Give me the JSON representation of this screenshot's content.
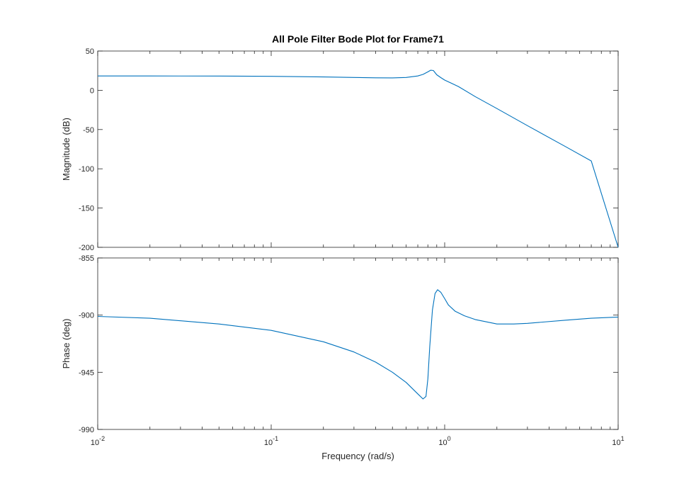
{
  "chart_data": [
    {
      "type": "line",
      "title": "All Pole Filter Bode Plot for Frame71",
      "xlabel": "",
      "ylabel": "Magnitude (dB)",
      "xscale": "log",
      "xlim": [
        0.01,
        10
      ],
      "ylim": [
        -200,
        50
      ],
      "yticks": [
        50,
        0,
        -50,
        -100,
        -150,
        -200
      ],
      "ytick_labels": [
        "50",
        "0",
        "-50",
        "-100",
        "-150",
        "-200"
      ],
      "grid": false,
      "series": [
        {
          "color": "#0072BD",
          "x": [
            0.01,
            0.02,
            0.05,
            0.1,
            0.2,
            0.3,
            0.4,
            0.5,
            0.6,
            0.7,
            0.75,
            0.8,
            0.83,
            0.86,
            0.88,
            0.9,
            0.95,
            1.0,
            1.2,
            1.5,
            2,
            3,
            5,
            7,
            10
          ],
          "y": [
            18.2,
            18.2,
            18.1,
            17.8,
            17.0,
            16.3,
            15.9,
            15.8,
            16.3,
            18.2,
            20.2,
            23.5,
            25.5,
            25.2,
            22.5,
            19.8,
            16.2,
            13.0,
            4.8,
            -8.0,
            -23.3,
            -45.0,
            -72.0,
            -90.0,
            -200
          ]
        }
      ]
    },
    {
      "type": "line",
      "title": "",
      "xlabel": "Frequency  (rad/s)",
      "ylabel": "Phase (deg)",
      "xscale": "log",
      "xlim": [
        0.01,
        10
      ],
      "ylim": [
        -990,
        -855
      ],
      "yticks": [
        -855,
        -900,
        -945,
        -990
      ],
      "ytick_labels": [
        "-855",
        "-900",
        "-945",
        "-990"
      ],
      "xtick_labels": [
        {
          "base": "10",
          "exp": "-2"
        },
        {
          "base": "10",
          "exp": "-1"
        },
        {
          "base": "10",
          "exp": "0"
        },
        {
          "base": "10",
          "exp": "1"
        }
      ],
      "grid": false,
      "series": [
        {
          "color": "#0072BD",
          "x": [
            0.01,
            0.02,
            0.05,
            0.1,
            0.2,
            0.3,
            0.4,
            0.5,
            0.6,
            0.7,
            0.75,
            0.78,
            0.8,
            0.82,
            0.85,
            0.88,
            0.91,
            0.95,
            1.0,
            1.05,
            1.15,
            1.3,
            1.5,
            2.0,
            2.5,
            3,
            5,
            7,
            10
          ],
          "y": [
            -901,
            -902.5,
            -907,
            -912,
            -921,
            -929,
            -937,
            -945,
            -953,
            -962,
            -966,
            -964,
            -950,
            -925,
            -896,
            -883,
            -880,
            -882,
            -887,
            -892,
            -897,
            -900.5,
            -903.5,
            -907,
            -907,
            -906.5,
            -904,
            -902.5,
            -901.5
          ]
        }
      ]
    }
  ]
}
